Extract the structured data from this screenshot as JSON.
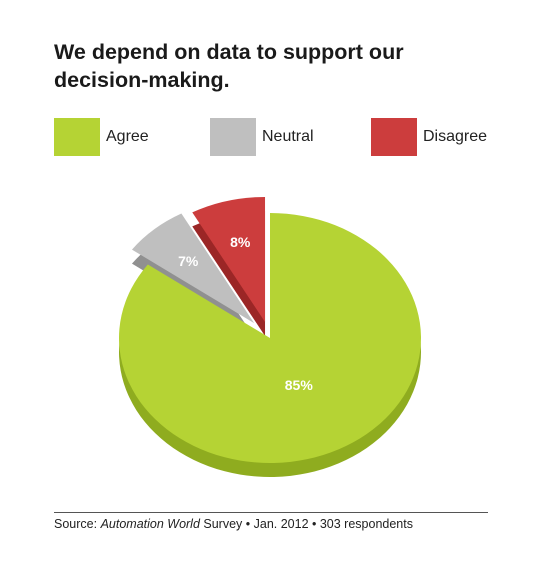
{
  "colors": {
    "agree": "#b5d334",
    "agree_side": "#8fac1f",
    "neutral": "#bfbfbf",
    "neutral_side": "#909090",
    "disagree": "#cc3d3d",
    "disagree_side": "#9b2626"
  },
  "chart_data": {
    "type": "pie",
    "title": "We depend on data to support our decision-making.",
    "legend_position": "top",
    "slices": [
      {
        "name": "Agree",
        "value": 85,
        "label": "85%",
        "color_key": "agree"
      },
      {
        "name": "Neutral",
        "value": 7,
        "label": "7%",
        "color_key": "neutral"
      },
      {
        "name": "Disagree",
        "value": 8,
        "label": "8%",
        "color_key": "disagree"
      }
    ]
  },
  "source": {
    "prefix": "Source: ",
    "publication": "Automation World",
    "suffix": " Survey  •  Jan. 2012  •  303 respondents"
  }
}
